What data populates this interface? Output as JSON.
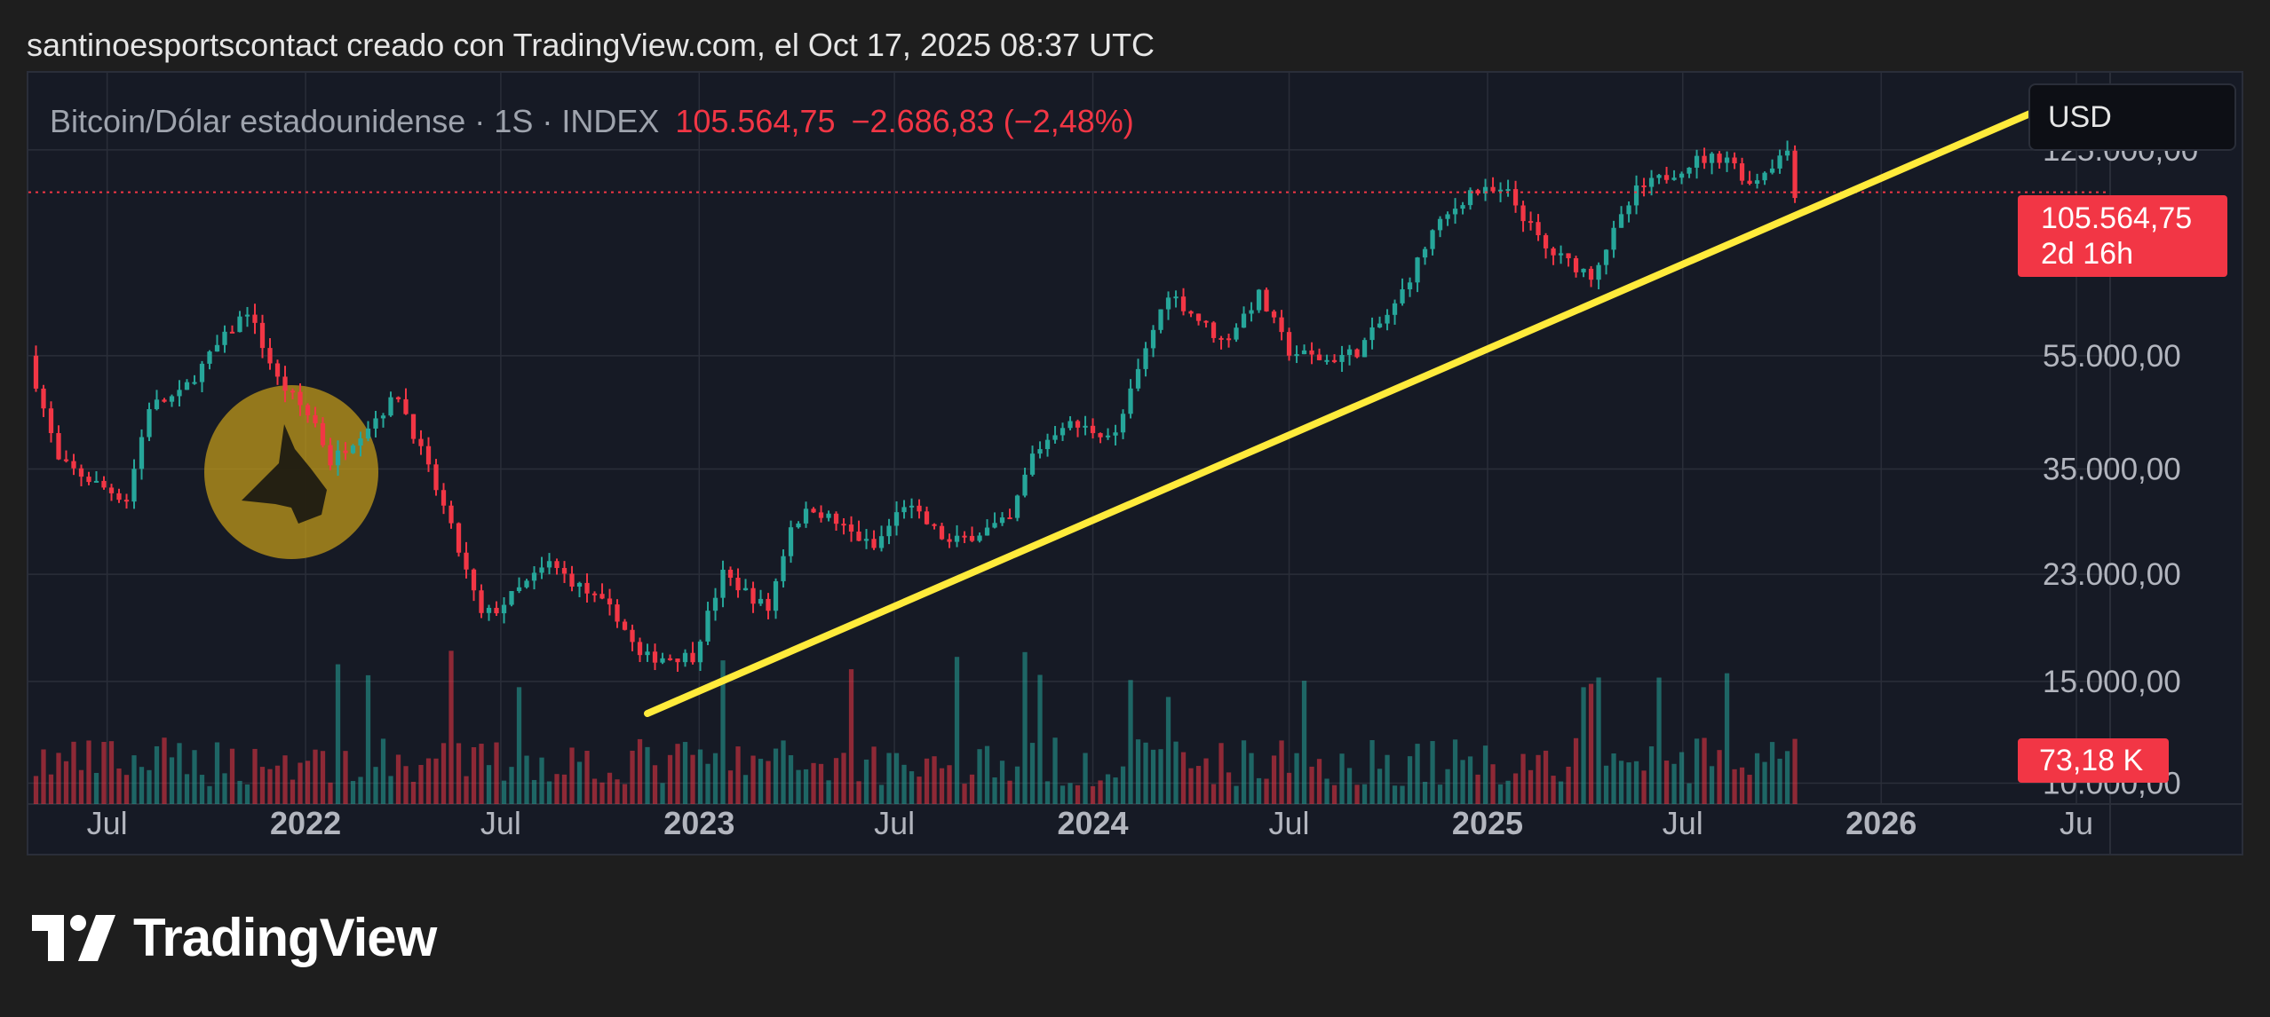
{
  "caption": "santinoesportscontact creado con TradingView.com, el Oct 17, 2025 08:37 UTC",
  "legend": {
    "symbol": "Bitcoin/Dólar estadounidense · 1S · INDEX",
    "last_price": "105.564,75",
    "change": "−2.686,83 (−2,48%)"
  },
  "currency": "USD",
  "price_tag": {
    "price": "105.564,75",
    "countdown": "2d 16h"
  },
  "volume_tag": "73,18 K",
  "logo_text": "TradingView",
  "colors": {
    "background": "#161a25",
    "up": "#26a69a",
    "down": "#f23645",
    "trendline": "#ffeb3b",
    "grid": "#2a2e39",
    "axis_text": "#b2b5be",
    "watermark": "#b8941a"
  },
  "chart_data": {
    "type": "candlestick",
    "title": "Bitcoin/Dólar estadounidense · 1S · INDEX",
    "xlabel": "",
    "ylabel": "",
    "y_scale": "log",
    "ylim": [
      9200,
      170000
    ],
    "y_ticks": [
      {
        "value": 125000,
        "label": "125.000,00"
      },
      {
        "value": 55000,
        "label": "55.000,00"
      },
      {
        "value": 35000,
        "label": "35.000,00"
      },
      {
        "value": 23000,
        "label": "23.000,00"
      },
      {
        "value": 15000,
        "label": "15.000,00"
      },
      {
        "value": 10000,
        "label": "10.000,00"
      }
    ],
    "x_ticks": [
      {
        "date": "2021-07-01",
        "label": "Jul",
        "bold": false
      },
      {
        "date": "2022-01-01",
        "label": "2022",
        "bold": true
      },
      {
        "date": "2022-07-01",
        "label": "Jul",
        "bold": false
      },
      {
        "date": "2023-01-01",
        "label": "2023",
        "bold": true
      },
      {
        "date": "2023-07-01",
        "label": "Jul",
        "bold": false
      },
      {
        "date": "2024-01-01",
        "label": "2024",
        "bold": true
      },
      {
        "date": "2024-07-01",
        "label": "Jul",
        "bold": false
      },
      {
        "date": "2025-01-01",
        "label": "2025",
        "bold": true
      },
      {
        "date": "2025-07-01",
        "label": "Jul",
        "bold": false
      },
      {
        "date": "2026-01-01",
        "label": "2026",
        "bold": true
      },
      {
        "date": "2026-07-01",
        "label": "Ju",
        "bold": false
      }
    ],
    "xlim": [
      "2021-04-19",
      "2026-07-29"
    ],
    "price_series": [
      [
        "2021-04-19",
        55000
      ],
      [
        "2021-05-17",
        36000
      ],
      [
        "2021-06-21",
        33000
      ],
      [
        "2021-07-19",
        31000
      ],
      [
        "2021-08-09",
        45000
      ],
      [
        "2021-09-06",
        47000
      ],
      [
        "2021-10-11",
        57000
      ],
      [
        "2021-11-08",
        66000
      ],
      [
        "2021-12-06",
        50000
      ],
      [
        "2022-01-10",
        42000
      ],
      [
        "2022-01-24",
        36000
      ],
      [
        "2022-03-28",
        47000
      ],
      [
        "2022-05-09",
        30000
      ],
      [
        "2022-06-13",
        19500
      ],
      [
        "2022-06-27",
        20000
      ],
      [
        "2022-08-15",
        24000
      ],
      [
        "2022-10-17",
        19500
      ],
      [
        "2022-11-07",
        16500
      ],
      [
        "2022-12-26",
        16600
      ],
      [
        "2023-01-23",
        23000
      ],
      [
        "2023-03-06",
        20000
      ],
      [
        "2023-03-27",
        28000
      ],
      [
        "2023-04-17",
        30000
      ],
      [
        "2023-06-12",
        25500
      ],
      [
        "2023-07-10",
        30500
      ],
      [
        "2023-08-21",
        26000
      ],
      [
        "2023-10-16",
        28500
      ],
      [
        "2023-11-06",
        37000
      ],
      [
        "2023-12-04",
        42000
      ],
      [
        "2024-01-22",
        40000
      ],
      [
        "2024-02-26",
        61000
      ],
      [
        "2024-03-11",
        71000
      ],
      [
        "2024-05-01",
        58000
      ],
      [
        "2024-06-03",
        70000
      ],
      [
        "2024-07-01",
        56000
      ],
      [
        "2024-08-05",
        54000
      ],
      [
        "2024-09-02",
        56000
      ],
      [
        "2024-10-07",
        67000
      ],
      [
        "2024-11-11",
        90000
      ],
      [
        "2024-12-16",
        106000
      ],
      [
        "2025-01-20",
        105000
      ],
      [
        "2025-02-24",
        84000
      ],
      [
        "2025-04-07",
        76000
      ],
      [
        "2025-05-19",
        106000
      ],
      [
        "2025-07-14",
        120000
      ],
      [
        "2025-08-11",
        122000
      ],
      [
        "2025-09-01",
        109000
      ],
      [
        "2025-10-06",
        125000
      ],
      [
        "2025-10-13",
        105564.75
      ]
    ],
    "current_price": 105564.75,
    "trendline": {
      "start": [
        "2022-11-14",
        13200
      ],
      "end": [
        "2026-06-01",
        148000
      ]
    }
  }
}
